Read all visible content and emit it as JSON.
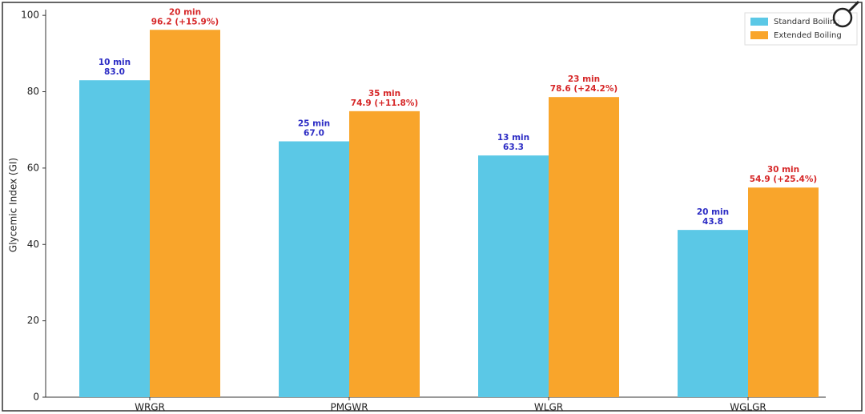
{
  "chart_data": {
    "type": "bar",
    "y_label": "Glycemic Index (GI)",
    "categories": [
      "WRGR",
      "PMGWR",
      "WLGR",
      "WGLGR"
    ],
    "series": [
      {
        "name": "Standard Boiling",
        "color": "#5bc8e6",
        "label_color": "#2b2bc4",
        "values": [
          83.0,
          67.0,
          63.3,
          43.8
        ],
        "value_labels": [
          "83.0",
          "67.0",
          "63.3",
          "43.8"
        ],
        "durations": [
          "10 min",
          "25 min",
          "13 min",
          "20 min"
        ]
      },
      {
        "name": "Extended Boiling",
        "color": "#f9a52b",
        "label_color": "#d62728",
        "values": [
          96.2,
          74.9,
          78.6,
          54.9
        ],
        "value_labels": [
          "96.2 (+15.9%)",
          "74.9 (+11.8%)",
          "78.6 (+24.2%)",
          "54.9 (+25.4%)"
        ],
        "durations": [
          "20 min",
          "35 min",
          "23 min",
          "30 min"
        ]
      }
    ],
    "ylim": [
      0,
      101.5
    ],
    "yticks": [
      0,
      20,
      40,
      60,
      80,
      100
    ],
    "legend": "upper right"
  }
}
